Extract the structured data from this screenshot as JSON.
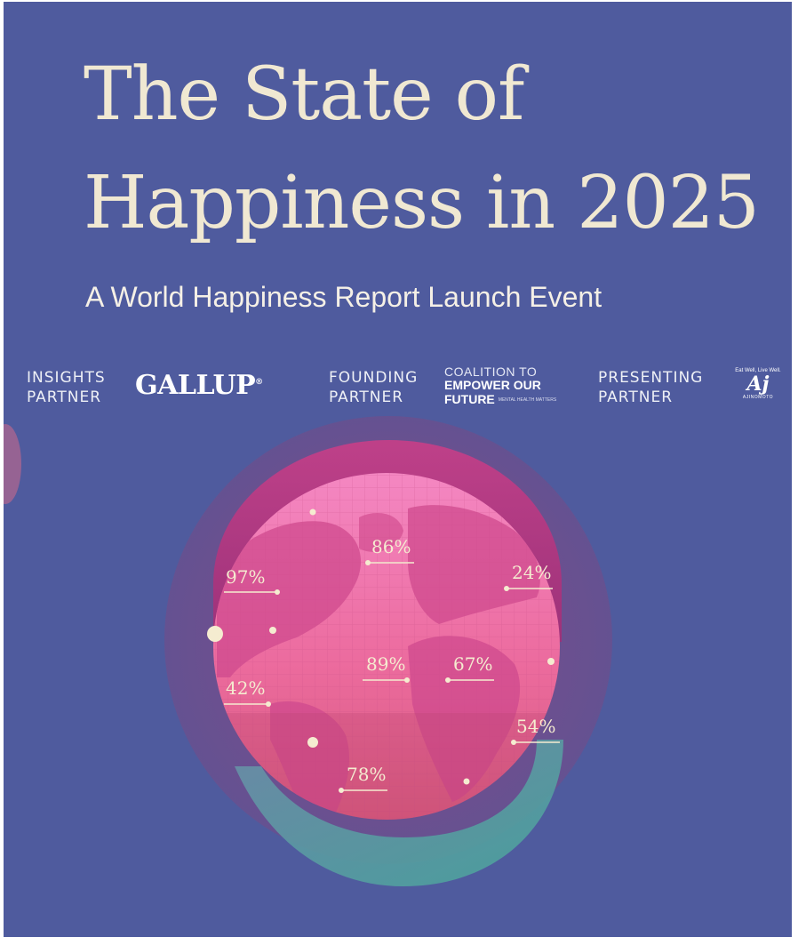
{
  "title_line1": "The State of",
  "title_line2": "Happiness in 2025",
  "subtitle": "A World Happiness Report Launch Event",
  "partners": {
    "insights": {
      "line1": "INSIGHTS",
      "line2": "PARTNER",
      "logo": "GALLUP",
      "logo_mark": "®"
    },
    "founding": {
      "line1": "FOUNDING",
      "line2": "PARTNER",
      "logo_line1": "COALITION TO",
      "logo_line2": "EMPOWER OUR",
      "logo_line3": "FUTURE",
      "logo_tagline": "MENTAL HEALTH MATTERS"
    },
    "presenting": {
      "line1": "PRESENTING",
      "line2": "PARTNER",
      "logo_tagline": "Eat Well, Live Well.",
      "logo_mark": "Aj",
      "logo_name": "AJINOMOTO"
    }
  },
  "globe_stats": [
    {
      "label": "97%"
    },
    {
      "label": "86%"
    },
    {
      "label": "24%"
    },
    {
      "label": "89%"
    },
    {
      "label": "67%"
    },
    {
      "label": "42%"
    },
    {
      "label": "54%"
    },
    {
      "label": "78%"
    }
  ],
  "colors": {
    "background": "#4f5b9e",
    "title": "#f0e8d2",
    "globe_pink": "#f07bb8",
    "ring_magenta": "#b8337c",
    "ring_teal": "#4fa3a0",
    "marker": "#f5ecd0"
  }
}
